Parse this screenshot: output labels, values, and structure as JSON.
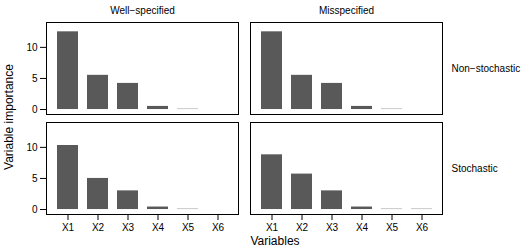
{
  "chart_data": {
    "type": "bar",
    "xlabel": "Variables",
    "ylabel": "Variable importance",
    "categories": [
      "X1",
      "X2",
      "X3",
      "X4",
      "X5",
      "X6"
    ],
    "facet_columns": [
      "Well−specified",
      "Misspecified"
    ],
    "facet_rows": [
      "Non−stochastic",
      "Stochastic"
    ],
    "panels": [
      {
        "column": "Well−specified",
        "row": "Non−stochastic",
        "values": [
          12.5,
          5.5,
          4.2,
          0.5,
          0.05,
          0.0
        ]
      },
      {
        "column": "Misspecified",
        "row": "Non−stochastic",
        "values": [
          12.5,
          5.5,
          4.2,
          0.5,
          0.05,
          0.0
        ]
      },
      {
        "column": "Well−specified",
        "row": "Stochastic",
        "values": [
          10.3,
          5.0,
          3.0,
          0.4,
          0.05,
          0.0
        ]
      },
      {
        "column": "Misspecified",
        "row": "Stochastic",
        "values": [
          8.8,
          5.7,
          3.0,
          0.4,
          0.05,
          0.05
        ]
      }
    ],
    "color": "#595959",
    "ylim": [
      -0.8,
      14.0
    ],
    "yticks": [
      0,
      5,
      10
    ],
    "grid": false
  }
}
